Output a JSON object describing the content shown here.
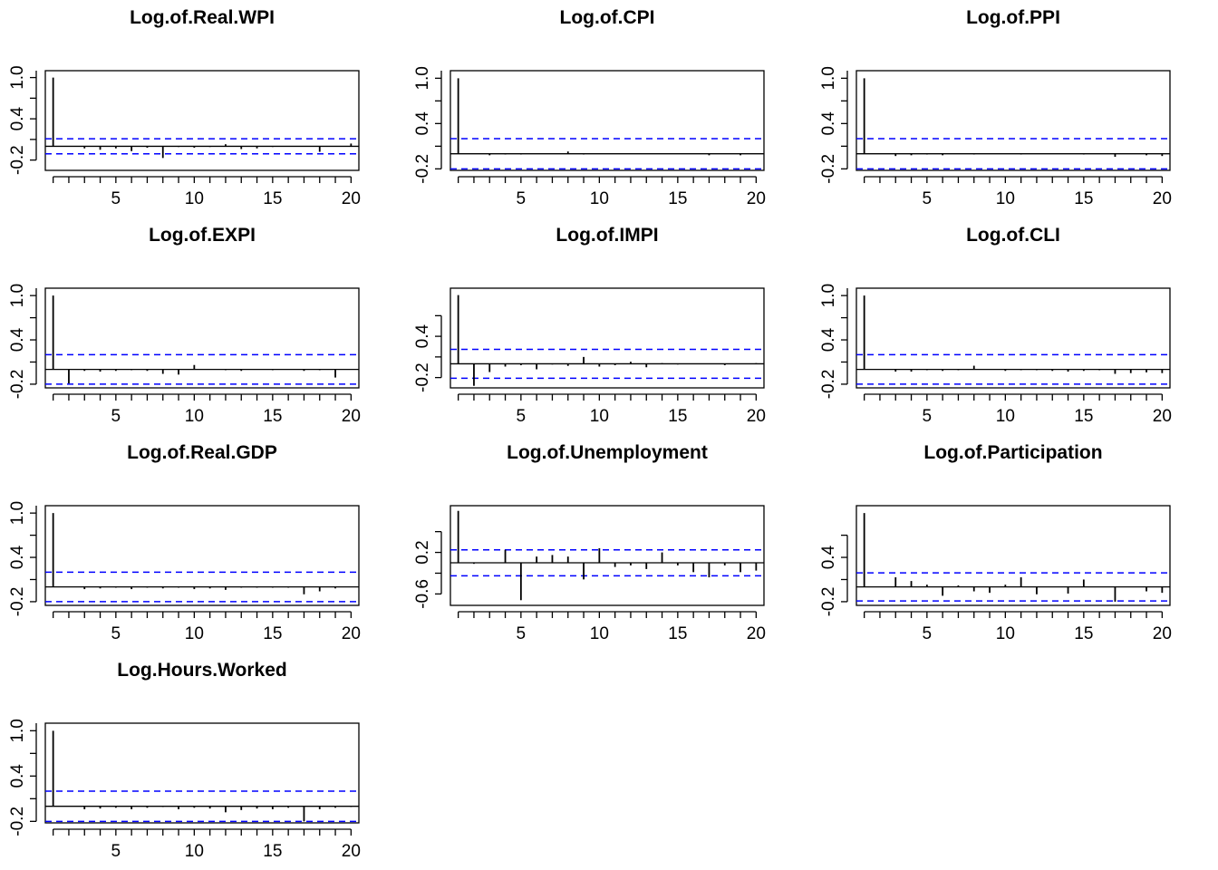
{
  "colors": {
    "ci_line": "#0000ff",
    "bars": "#000000",
    "frame": "#000000"
  },
  "x_ticks": [
    5,
    10,
    15,
    20
  ],
  "chart_data": [
    {
      "type": "bar",
      "title": "Log.of.Real.WPI",
      "lags": [
        1,
        2,
        3,
        4,
        5,
        6,
        7,
        8,
        9,
        10,
        11,
        12,
        13,
        14,
        15,
        16,
        17,
        18,
        19,
        20
      ],
      "values": [
        1.0,
        0.0,
        -0.03,
        -0.05,
        -0.03,
        -0.07,
        -0.02,
        -0.17,
        -0.01,
        -0.02,
        -0.01,
        0.03,
        -0.04,
        -0.03,
        -0.01,
        0.0,
        0.0,
        -0.08,
        0.0,
        0.04
      ],
      "ci": 0.11,
      "ylim": [
        -0.35,
        1.1
      ],
      "y_ticks": [
        -0.2,
        0.4,
        1.0
      ],
      "y_tick_labels": [
        "-0.2",
        "0.4",
        "1.0"
      ]
    },
    {
      "type": "bar",
      "title": "Log.of.CPI",
      "lags": [
        1,
        2,
        3,
        4,
        5,
        6,
        7,
        8,
        9,
        10,
        11,
        12,
        13,
        14,
        15,
        16,
        17,
        18,
        19,
        20
      ],
      "values": [
        1.0,
        0.0,
        -0.02,
        -0.01,
        -0.01,
        0.0,
        0.0,
        0.03,
        -0.01,
        0.0,
        0.0,
        0.0,
        0.0,
        0.0,
        0.0,
        0.0,
        -0.02,
        0.0,
        -0.02,
        0.0
      ],
      "ci": 0.2,
      "ylim": [
        -0.22,
        1.1
      ],
      "y_ticks": [
        -0.2,
        0.4,
        1.0
      ],
      "y_tick_labels": [
        "-0.2",
        "0.4",
        "1.0"
      ]
    },
    {
      "type": "bar",
      "title": "Log.of.PPI",
      "lags": [
        1,
        2,
        3,
        4,
        5,
        6,
        7,
        8,
        9,
        10,
        11,
        12,
        13,
        14,
        15,
        16,
        17,
        18,
        19,
        20
      ],
      "values": [
        1.0,
        0.0,
        -0.03,
        -0.02,
        -0.01,
        -0.02,
        0.0,
        -0.01,
        0.0,
        0.0,
        -0.01,
        0.0,
        0.0,
        0.0,
        -0.01,
        0.0,
        -0.04,
        0.0,
        -0.02,
        -0.03
      ],
      "ci": 0.2,
      "ylim": [
        -0.22,
        1.1
      ],
      "y_ticks": [
        -0.2,
        0.4,
        1.0
      ],
      "y_tick_labels": [
        "-0.2",
        "0.4",
        "1.0"
      ]
    },
    {
      "type": "bar",
      "title": "Log.of.EXPI",
      "lags": [
        1,
        2,
        3,
        4,
        5,
        6,
        7,
        8,
        9,
        10,
        11,
        12,
        13,
        14,
        15,
        16,
        17,
        18,
        19,
        20
      ],
      "values": [
        1.0,
        -0.19,
        -0.02,
        -0.03,
        -0.02,
        -0.01,
        -0.02,
        -0.06,
        -0.07,
        0.06,
        0.0,
        -0.01,
        -0.02,
        0.0,
        -0.01,
        0.0,
        -0.02,
        -0.01,
        -0.11,
        0.0
      ],
      "ci": 0.2,
      "ylim": [
        -0.25,
        1.1
      ],
      "y_ticks": [
        -0.2,
        0.4,
        1.0
      ],
      "y_tick_labels": [
        "-0.2",
        "0.4",
        "1.0"
      ]
    },
    {
      "type": "bar",
      "title": "Log.of.IMPI",
      "lags": [
        1,
        2,
        3,
        4,
        5,
        6,
        7,
        8,
        9,
        10,
        11,
        12,
        13,
        14,
        15,
        16,
        17,
        18,
        19,
        20
      ],
      "values": [
        1.0,
        -0.32,
        -0.12,
        -0.04,
        -0.02,
        -0.08,
        -0.01,
        -0.03,
        0.1,
        -0.04,
        -0.02,
        0.03,
        -0.05,
        0.01,
        -0.01,
        0.0,
        0.0,
        -0.02,
        0.0,
        0.01
      ],
      "ci": 0.21,
      "ylim": [
        -0.35,
        1.1
      ],
      "y_ticks": [
        -0.2,
        0.4
      ],
      "y_tick_labels": [
        "-0.2",
        "0.4"
      ]
    },
    {
      "type": "bar",
      "title": "Log.of.CLI",
      "lags": [
        1,
        2,
        3,
        4,
        5,
        6,
        7,
        8,
        9,
        10,
        11,
        12,
        13,
        14,
        15,
        16,
        17,
        18,
        19,
        20
      ],
      "values": [
        1.0,
        0.0,
        -0.03,
        -0.03,
        -0.01,
        -0.02,
        -0.01,
        0.05,
        0.0,
        -0.02,
        -0.01,
        -0.01,
        -0.02,
        -0.03,
        -0.02,
        -0.01,
        -0.06,
        -0.05,
        -0.04,
        -0.05
      ],
      "ci": 0.2,
      "ylim": [
        -0.25,
        1.1
      ],
      "y_ticks": [
        -0.2,
        0.4,
        1.0
      ],
      "y_tick_labels": [
        "-0.2",
        "0.4",
        "1.0"
      ]
    },
    {
      "type": "bar",
      "title": "Log.of.Real.GDP",
      "lags": [
        1,
        2,
        3,
        4,
        5,
        6,
        7,
        8,
        9,
        10,
        11,
        12,
        13,
        14,
        15,
        16,
        17,
        18,
        19,
        20
      ],
      "values": [
        1.0,
        0.0,
        -0.03,
        -0.02,
        -0.01,
        -0.03,
        -0.01,
        -0.02,
        -0.01,
        -0.03,
        -0.02,
        -0.04,
        -0.01,
        -0.01,
        -0.01,
        -0.01,
        -0.1,
        -0.06,
        -0.02,
        0.0
      ],
      "ci": 0.2,
      "ylim": [
        -0.25,
        1.1
      ],
      "y_ticks": [
        -0.2,
        0.4,
        1.0
      ],
      "y_tick_labels": [
        "-0.2",
        "0.4",
        "1.0"
      ]
    },
    {
      "type": "bar",
      "title": "Log.of.Unemployment",
      "lags": [
        1,
        2,
        3,
        4,
        5,
        6,
        7,
        8,
        9,
        10,
        11,
        12,
        13,
        14,
        15,
        16,
        17,
        18,
        19,
        20
      ],
      "values": [
        1.0,
        -0.02,
        0.0,
        0.25,
        -0.72,
        0.12,
        0.15,
        0.12,
        -0.32,
        0.28,
        -0.08,
        -0.05,
        -0.12,
        0.2,
        -0.05,
        -0.18,
        -0.28,
        -0.05,
        -0.18,
        -0.15
      ],
      "ci": 0.25,
      "ylim": [
        -0.82,
        1.1
      ],
      "y_ticks": [
        -0.6,
        0.2
      ],
      "y_tick_labels": [
        "-0.6",
        "0.2"
      ]
    },
    {
      "type": "bar",
      "title": "Log.of.Participation",
      "lags": [
        1,
        2,
        3,
        4,
        5,
        6,
        7,
        8,
        9,
        10,
        11,
        12,
        13,
        14,
        15,
        16,
        17,
        18,
        19,
        20
      ],
      "values": [
        1.0,
        0.0,
        0.13,
        0.08,
        0.03,
        -0.12,
        0.02,
        -0.06,
        -0.08,
        0.03,
        0.13,
        -0.1,
        0.0,
        -0.09,
        0.1,
        0.0,
        -0.2,
        0.0,
        -0.06,
        -0.08
      ],
      "ci": 0.19,
      "ylim": [
        -0.25,
        1.1
      ],
      "y_ticks": [
        -0.2,
        0.4
      ],
      "y_tick_labels": [
        "-0.2",
        "0.4"
      ]
    },
    {
      "type": "bar",
      "title": "Log.Hours.Worked",
      "lags": [
        1,
        2,
        3,
        4,
        5,
        6,
        7,
        8,
        9,
        10,
        11,
        12,
        13,
        14,
        15,
        16,
        17,
        18,
        19,
        20
      ],
      "values": [
        1.0,
        0.0,
        -0.04,
        -0.03,
        -0.02,
        -0.04,
        -0.02,
        -0.01,
        -0.04,
        -0.02,
        -0.03,
        -0.08,
        -0.05,
        -0.03,
        -0.04,
        -0.02,
        -0.2,
        -0.04,
        -0.02,
        -0.01
      ],
      "ci": 0.2,
      "ylim": [
        -0.22,
        1.1
      ],
      "y_ticks": [
        -0.2,
        0.4,
        1.0
      ],
      "y_tick_labels": [
        "-0.2",
        "0.4",
        "1.0"
      ]
    }
  ]
}
